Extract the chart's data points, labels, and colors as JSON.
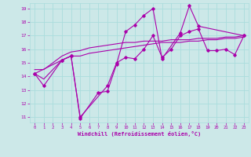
{
  "xlabel": "Windchill (Refroidissement éolien,°C)",
  "background_color": "#cce8e8",
  "grid_color": "#aadddd",
  "line_color": "#aa00aa",
  "xlim_min": -0.5,
  "xlim_max": 23.5,
  "ylim_min": 10.6,
  "ylim_max": 19.4,
  "xticks": [
    0,
    1,
    2,
    3,
    4,
    5,
    6,
    7,
    8,
    9,
    10,
    11,
    12,
    13,
    14,
    15,
    16,
    17,
    18,
    19,
    20,
    21,
    22,
    23
  ],
  "yticks": [
    11,
    12,
    13,
    14,
    15,
    16,
    17,
    18,
    19
  ],
  "series_jagged1": [
    14.2,
    13.3,
    null,
    15.2,
    15.5,
    10.9,
    null,
    12.8,
    12.9,
    14.9,
    17.3,
    17.8,
    18.5,
    19.0,
    15.3,
    null,
    17.2,
    19.2,
    17.7,
    null,
    null,
    null,
    null,
    17.0
  ],
  "series_jagged2": [
    14.2,
    null,
    null,
    15.2,
    15.5,
    11.0,
    null,
    null,
    13.3,
    15.0,
    15.4,
    15.3,
    16.0,
    17.0,
    15.4,
    16.0,
    17.0,
    17.3,
    17.5,
    15.9,
    15.9,
    16.0,
    15.6,
    17.0
  ],
  "series_trend1": [
    14.2,
    13.8,
    14.5,
    15.2,
    15.5,
    15.5,
    15.7,
    15.8,
    15.9,
    16.0,
    16.1,
    16.2,
    16.3,
    16.4,
    16.5,
    16.5,
    16.5,
    16.6,
    16.6,
    16.7,
    16.7,
    16.8,
    16.8,
    16.9
  ],
  "series_trend2": [
    14.5,
    14.5,
    15.0,
    15.5,
    15.8,
    15.9,
    16.1,
    16.2,
    16.3,
    16.4,
    16.5,
    16.5,
    16.6,
    16.6,
    16.6,
    16.7,
    16.7,
    16.7,
    16.8,
    16.8,
    16.8,
    16.9,
    16.9,
    17.0
  ]
}
